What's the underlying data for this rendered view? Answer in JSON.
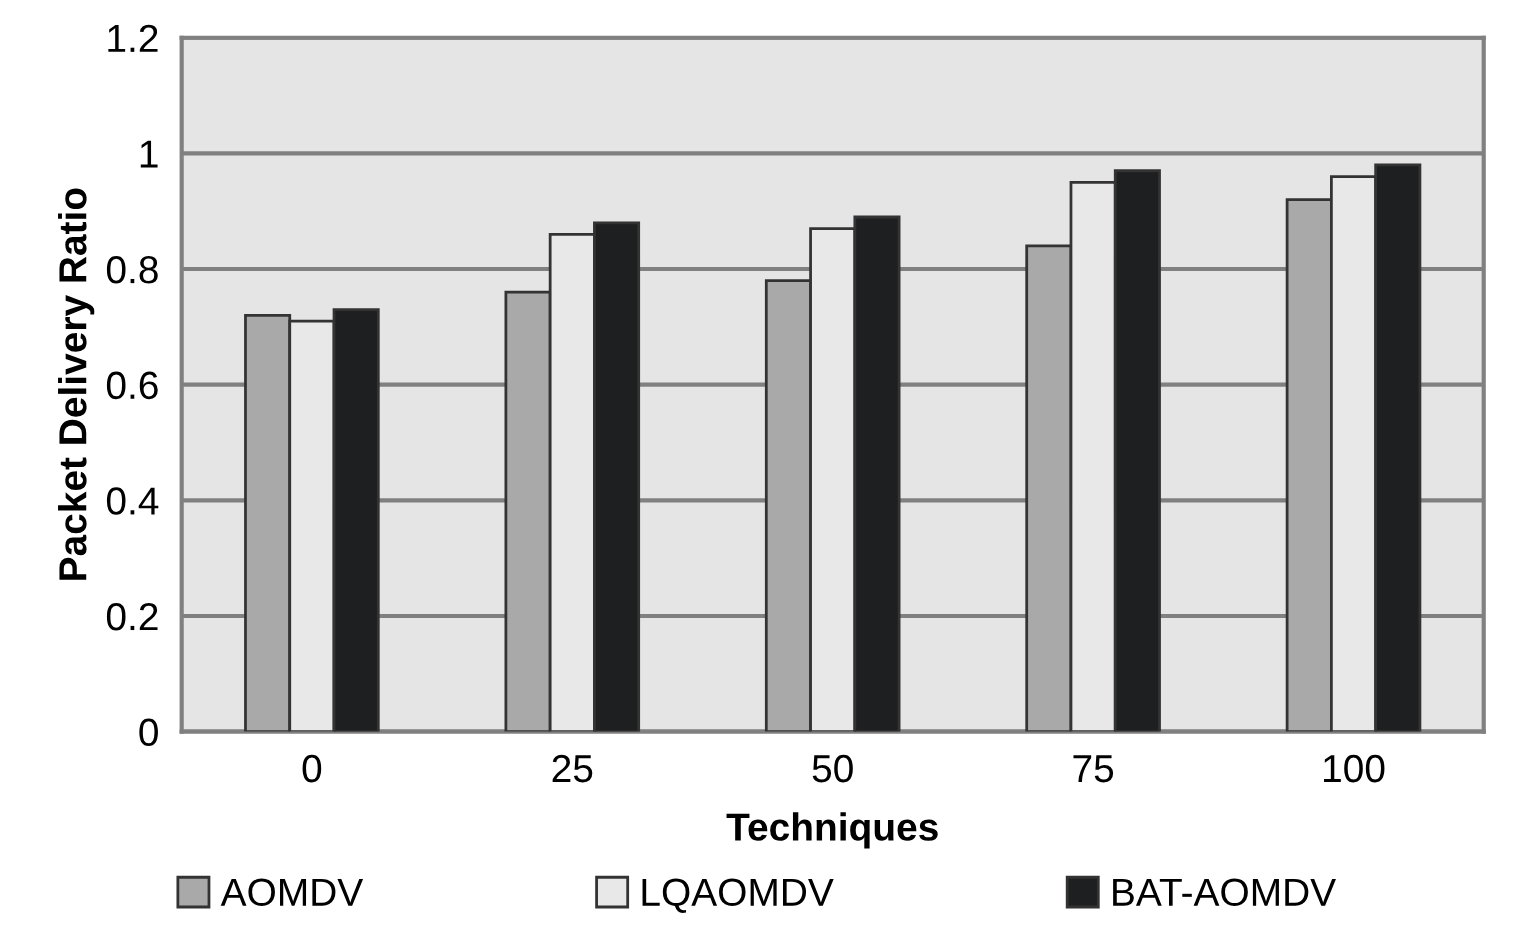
{
  "chart_data": {
    "type": "bar",
    "xlabel": "Techniques",
    "ylabel": "Packet Delivery Ratio",
    "categories": [
      "0",
      "25",
      "50",
      "75",
      "100"
    ],
    "series": [
      {
        "name": "AOMDV",
        "color": "#a9a9a9",
        "values": [
          0.72,
          0.76,
          0.78,
          0.84,
          0.92
        ]
      },
      {
        "name": "LQAOMDV",
        "color": "#e8e8e8",
        "values": [
          0.71,
          0.86,
          0.87,
          0.95,
          0.96
        ]
      },
      {
        "name": "BAT-AOMDV",
        "color": "#1e1f20",
        "values": [
          0.73,
          0.88,
          0.89,
          0.97,
          0.98
        ]
      }
    ],
    "ylim": [
      0,
      1.2
    ],
    "yticks": [
      0,
      0.2,
      0.4,
      0.6,
      0.8,
      1,
      1.2
    ],
    "grid": "y",
    "legend": "bottom"
  }
}
